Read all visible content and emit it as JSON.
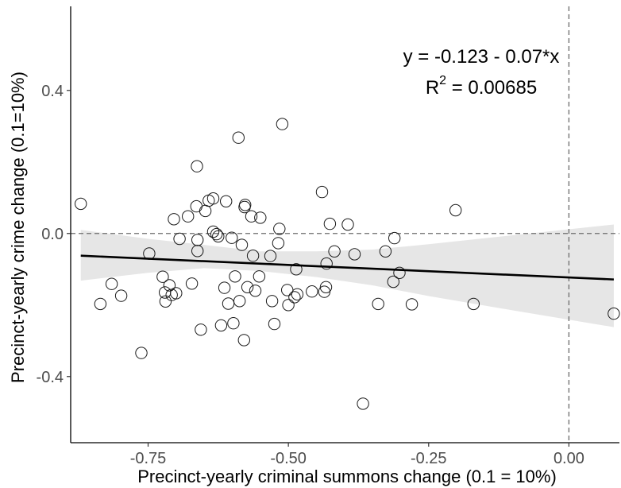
{
  "chart_data": {
    "type": "scatter",
    "xlabel": "Precinct-yearly criminal summons change (0.1 = 10%)",
    "ylabel": "Precinct-yearly crime change (0.1=10%)",
    "xlim": [
      -0.888,
      0.09
    ],
    "ylim": [
      -0.585,
      0.635
    ],
    "x_ticks": [
      -0.75,
      -0.5,
      -0.25,
      0.0
    ],
    "x_tick_labels": [
      "-0.75",
      "-0.50",
      "-0.25",
      "0.00"
    ],
    "y_ticks": [
      0.4,
      0.0,
      -0.4
    ],
    "y_tick_labels": [
      "0.4",
      "0.0",
      "-0.4"
    ],
    "reference_lines": {
      "x": 0.0,
      "y": 0.0,
      "style": "dashed"
    },
    "annotation": {
      "equation": "y = -0.123 - 0.07*x",
      "r2_prefix": "R",
      "r2_sup": "2",
      "r2_value": " = 0.00685"
    },
    "fit": {
      "intercept": -0.123,
      "slope": -0.07,
      "x_range": [
        -0.87,
        0.08
      ]
    },
    "confidence_band": [
      {
        "x": -0.87,
        "lo": -0.132,
        "hi": 0.01
      },
      {
        "x": -0.75,
        "lo": -0.11,
        "hi": -0.015
      },
      {
        "x": -0.65,
        "lo": -0.097,
        "hi": -0.032
      },
      {
        "x": -0.55,
        "lo": -0.105,
        "hi": -0.05
      },
      {
        "x": -0.45,
        "lo": -0.122,
        "hi": -0.05
      },
      {
        "x": -0.35,
        "lo": -0.145,
        "hi": -0.045
      },
      {
        "x": -0.25,
        "lo": -0.175,
        "hi": -0.03
      },
      {
        "x": -0.1,
        "lo": -0.215,
        "hi": -0.005
      },
      {
        "x": 0.08,
        "lo": -0.262,
        "hi": 0.025
      }
    ],
    "points": [
      {
        "x": -0.87,
        "y": 0.083
      },
      {
        "x": -0.835,
        "y": -0.197
      },
      {
        "x": -0.815,
        "y": -0.141
      },
      {
        "x": -0.798,
        "y": -0.174
      },
      {
        "x": -0.762,
        "y": -0.334
      },
      {
        "x": -0.748,
        "y": -0.056
      },
      {
        "x": -0.724,
        "y": -0.121
      },
      {
        "x": -0.72,
        "y": -0.165
      },
      {
        "x": -0.719,
        "y": -0.19
      },
      {
        "x": -0.712,
        "y": -0.145
      },
      {
        "x": -0.708,
        "y": -0.172
      },
      {
        "x": -0.704,
        "y": 0.04
      },
      {
        "x": -0.7,
        "y": -0.167
      },
      {
        "x": -0.694,
        "y": -0.015
      },
      {
        "x": -0.679,
        "y": 0.048
      },
      {
        "x": -0.672,
        "y": -0.14
      },
      {
        "x": -0.664,
        "y": 0.076
      },
      {
        "x": -0.662,
        "y": -0.049
      },
      {
        "x": -0.662,
        "y": -0.018
      },
      {
        "x": -0.663,
        "y": 0.188
      },
      {
        "x": -0.656,
        "y": -0.269
      },
      {
        "x": -0.648,
        "y": 0.063
      },
      {
        "x": -0.642,
        "y": 0.092
      },
      {
        "x": -0.634,
        "y": 0.098
      },
      {
        "x": -0.634,
        "y": 0.005
      },
      {
        "x": -0.628,
        "y": -0.002
      },
      {
        "x": -0.625,
        "y": -0.008
      },
      {
        "x": -0.62,
        "y": -0.257
      },
      {
        "x": -0.614,
        "y": -0.152
      },
      {
        "x": -0.611,
        "y": 0.09
      },
      {
        "x": -0.607,
        "y": -0.196
      },
      {
        "x": -0.601,
        "y": -0.012
      },
      {
        "x": -0.598,
        "y": -0.251
      },
      {
        "x": -0.595,
        "y": -0.12
      },
      {
        "x": -0.589,
        "y": 0.268
      },
      {
        "x": -0.587,
        "y": -0.189
      },
      {
        "x": -0.583,
        "y": -0.032
      },
      {
        "x": -0.579,
        "y": -0.298
      },
      {
        "x": -0.578,
        "y": 0.074
      },
      {
        "x": -0.577,
        "y": 0.08
      },
      {
        "x": -0.573,
        "y": -0.15
      },
      {
        "x": -0.566,
        "y": 0.048
      },
      {
        "x": -0.563,
        "y": -0.062
      },
      {
        "x": -0.559,
        "y": -0.16
      },
      {
        "x": -0.552,
        "y": -0.12
      },
      {
        "x": -0.55,
        "y": 0.044
      },
      {
        "x": -0.532,
        "y": -0.063
      },
      {
        "x": -0.529,
        "y": -0.189
      },
      {
        "x": -0.525,
        "y": -0.253
      },
      {
        "x": -0.518,
        "y": -0.027
      },
      {
        "x": -0.516,
        "y": 0.013
      },
      {
        "x": -0.511,
        "y": 0.306
      },
      {
        "x": -0.502,
        "y": -0.158
      },
      {
        "x": -0.5,
        "y": -0.2
      },
      {
        "x": -0.489,
        "y": -0.178
      },
      {
        "x": -0.486,
        "y": -0.1
      },
      {
        "x": -0.484,
        "y": -0.17
      },
      {
        "x": -0.458,
        "y": -0.162
      },
      {
        "x": -0.44,
        "y": 0.116
      },
      {
        "x": -0.436,
        "y": -0.163
      },
      {
        "x": -0.433,
        "y": -0.15
      },
      {
        "x": -0.432,
        "y": -0.084
      },
      {
        "x": -0.426,
        "y": 0.027
      },
      {
        "x": -0.418,
        "y": -0.05
      },
      {
        "x": -0.394,
        "y": 0.025
      },
      {
        "x": -0.382,
        "y": -0.058
      },
      {
        "x": -0.367,
        "y": -0.476
      },
      {
        "x": -0.34,
        "y": -0.197
      },
      {
        "x": -0.327,
        "y": -0.05
      },
      {
        "x": -0.311,
        "y": -0.013
      },
      {
        "x": -0.313,
        "y": -0.135
      },
      {
        "x": -0.302,
        "y": -0.11
      },
      {
        "x": -0.28,
        "y": -0.198
      },
      {
        "x": -0.202,
        "y": 0.065
      },
      {
        "x": -0.17,
        "y": -0.197
      },
      {
        "x": 0.08,
        "y": -0.224
      }
    ]
  }
}
